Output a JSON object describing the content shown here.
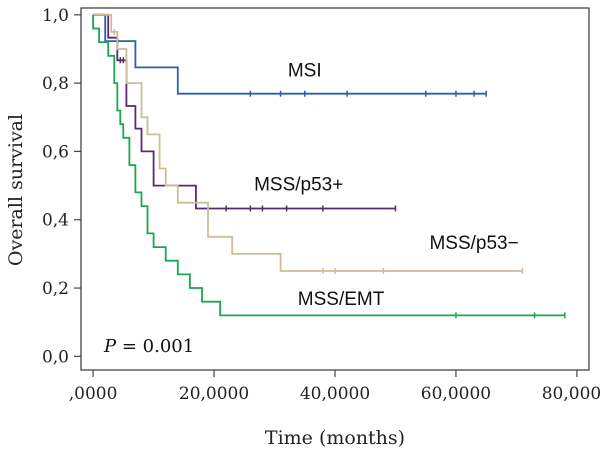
{
  "chart_data": {
    "type": "line",
    "subtype": "kaplan-meier step",
    "xlabel": "Time (months)",
    "ylabel": "Overall survival",
    "xlim": [
      -2,
      82
    ],
    "ylim": [
      -0.04,
      1.02
    ],
    "x_ticks": [
      0,
      20,
      40,
      60,
      80
    ],
    "x_tick_labels": [
      ",0000",
      "20,0000",
      "40,0000",
      "60,0000",
      "80,0000"
    ],
    "y_ticks": [
      0.0,
      0.2,
      0.4,
      0.6,
      0.8,
      1.0
    ],
    "y_tick_labels": [
      "0,0",
      "0,2",
      "0,4",
      "0,6",
      "0,8",
      "1,0"
    ],
    "grid": false,
    "annotation": {
      "prefix": "P",
      "text": " = 0.001"
    },
    "series": [
      {
        "name": "MSI",
        "color": "#2a5fae",
        "label_pos": [
          35,
          0.82
        ],
        "points": [
          [
            0,
            1.0
          ],
          [
            2,
            1.0
          ],
          [
            2,
            0.923
          ],
          [
            7,
            0.923
          ],
          [
            7,
            0.846
          ],
          [
            14,
            0.846
          ],
          [
            14,
            0.769
          ],
          [
            65,
            0.769
          ]
        ],
        "censor": [
          26,
          31,
          35,
          42,
          55,
          60,
          63,
          65
        ]
      },
      {
        "name": "MSS/p53+",
        "color": "#5b2a6e",
        "label_pos": [
          34,
          0.485
        ],
        "points": [
          [
            0,
            1.0
          ],
          [
            2.5,
            1.0
          ],
          [
            2.5,
            0.933
          ],
          [
            4,
            0.933
          ],
          [
            4,
            0.867
          ],
          [
            5.5,
            0.867
          ],
          [
            5.5,
            0.733
          ],
          [
            7,
            0.733
          ],
          [
            7,
            0.667
          ],
          [
            8,
            0.667
          ],
          [
            8,
            0.6
          ],
          [
            10,
            0.6
          ],
          [
            10,
            0.5
          ],
          [
            17,
            0.5
          ],
          [
            17,
            0.433
          ],
          [
            50,
            0.433
          ]
        ],
        "censor": [
          4.5,
          5,
          22,
          26,
          28,
          32,
          38,
          50
        ]
      },
      {
        "name": "MSS/p53−",
        "color": "#c9bf9a",
        "label_pos": [
          63,
          0.315
        ],
        "points": [
          [
            0,
            1.0
          ],
          [
            3,
            1.0
          ],
          [
            3,
            0.95
          ],
          [
            4,
            0.95
          ],
          [
            4,
            0.9
          ],
          [
            5.5,
            0.9
          ],
          [
            5.5,
            0.8
          ],
          [
            8,
            0.8
          ],
          [
            8,
            0.7
          ],
          [
            9,
            0.7
          ],
          [
            9,
            0.65
          ],
          [
            11,
            0.65
          ],
          [
            11,
            0.55
          ],
          [
            12,
            0.55
          ],
          [
            12,
            0.5
          ],
          [
            14,
            0.5
          ],
          [
            14,
            0.45
          ],
          [
            19,
            0.45
          ],
          [
            19,
            0.35
          ],
          [
            23,
            0.35
          ],
          [
            23,
            0.3
          ],
          [
            31,
            0.3
          ],
          [
            31,
            0.25
          ],
          [
            71,
            0.25
          ]
        ],
        "censor": [
          3.5,
          38,
          40,
          48,
          71
        ]
      },
      {
        "name": "MSS/EMT",
        "color": "#1aa84e",
        "label_pos": [
          41,
          0.15
        ],
        "points": [
          [
            0,
            1.0
          ],
          [
            0,
            0.96
          ],
          [
            1,
            0.96
          ],
          [
            1,
            0.92
          ],
          [
            2.5,
            0.92
          ],
          [
            2.5,
            0.88
          ],
          [
            3.5,
            0.88
          ],
          [
            3.5,
            0.8
          ],
          [
            4,
            0.8
          ],
          [
            4,
            0.72
          ],
          [
            4.5,
            0.72
          ],
          [
            4.5,
            0.68
          ],
          [
            5,
            0.68
          ],
          [
            5,
            0.64
          ],
          [
            6,
            0.64
          ],
          [
            6,
            0.56
          ],
          [
            7,
            0.56
          ],
          [
            7,
            0.48
          ],
          [
            8,
            0.48
          ],
          [
            8,
            0.44
          ],
          [
            9,
            0.44
          ],
          [
            9,
            0.36
          ],
          [
            10,
            0.36
          ],
          [
            10,
            0.32
          ],
          [
            12,
            0.32
          ],
          [
            12,
            0.28
          ],
          [
            14,
            0.28
          ],
          [
            14,
            0.24
          ],
          [
            16,
            0.24
          ],
          [
            16,
            0.2
          ],
          [
            18,
            0.2
          ],
          [
            18,
            0.16
          ],
          [
            21,
            0.16
          ],
          [
            21,
            0.12
          ],
          [
            78,
            0.12
          ]
        ],
        "censor": [
          60,
          73,
          78
        ]
      }
    ]
  }
}
